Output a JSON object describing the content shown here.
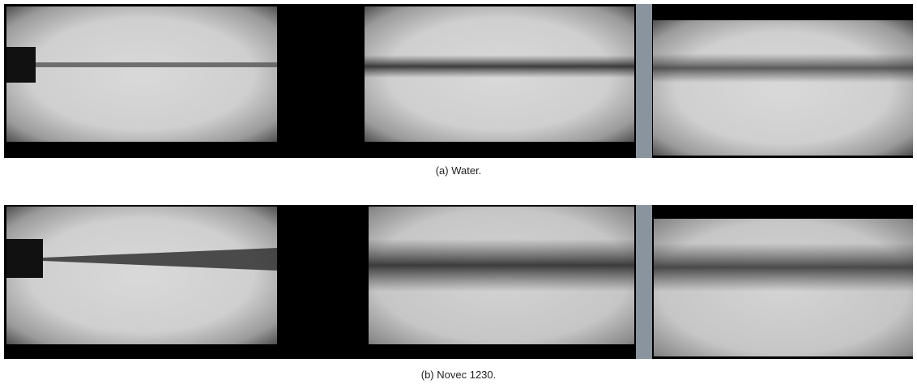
{
  "figure": {
    "captions": [
      "(a) Water.",
      "(b) Novec 1230."
    ]
  }
}
